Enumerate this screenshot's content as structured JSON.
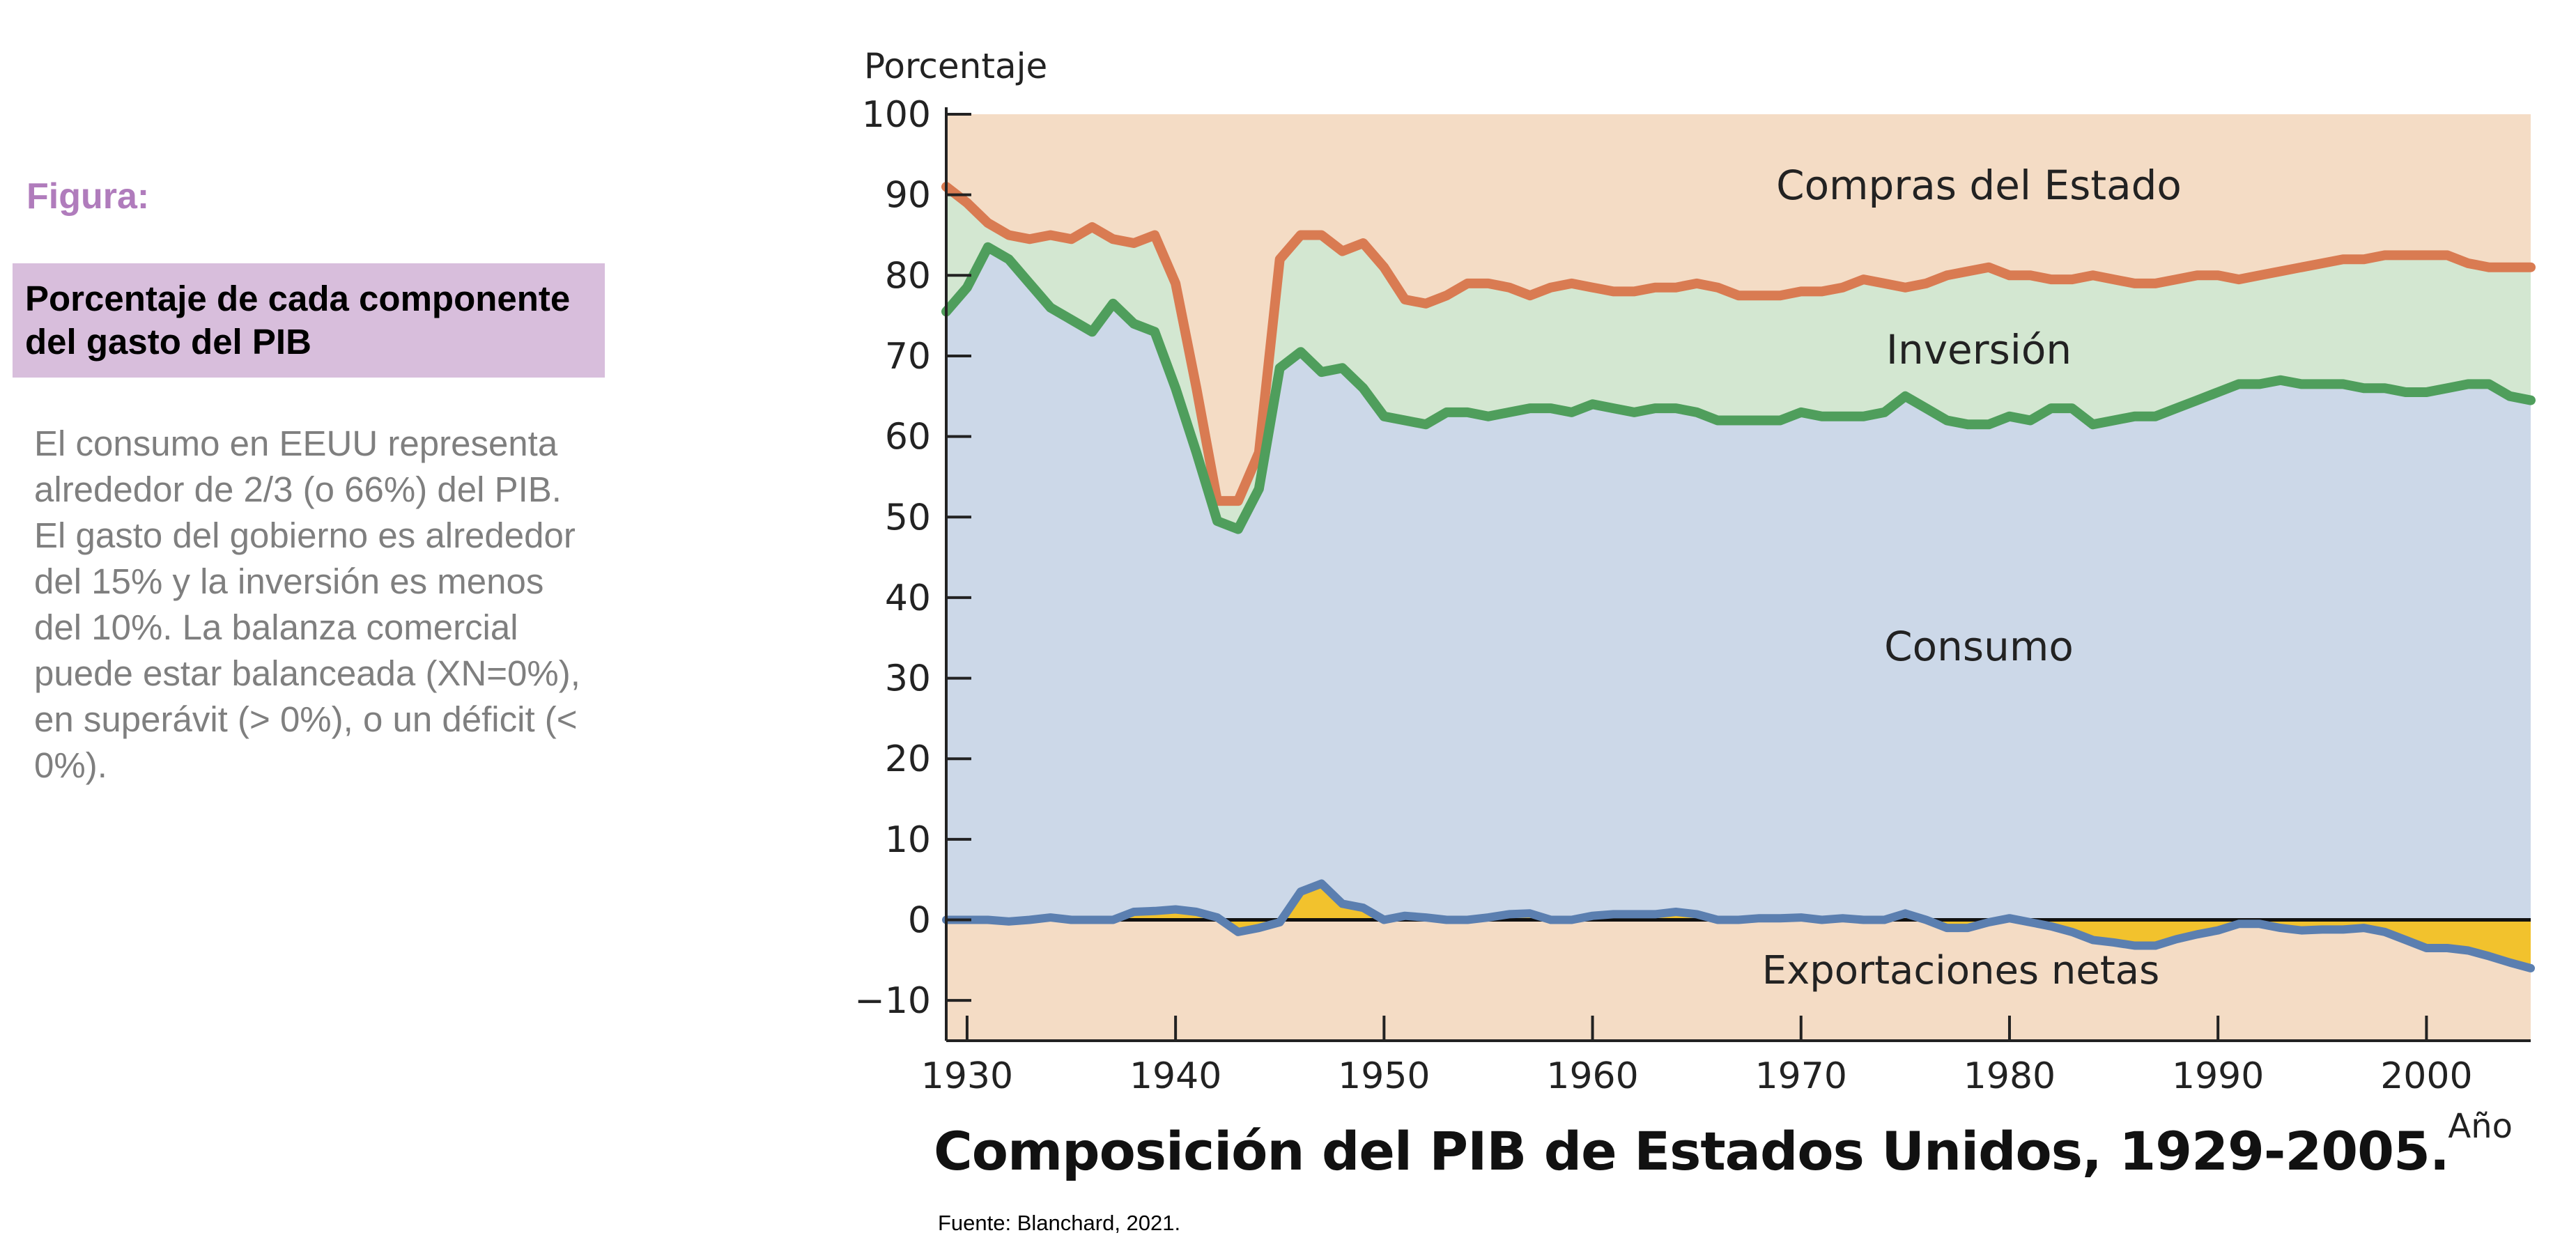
{
  "figure_label": "Figura:",
  "title_box": "Porcentaje de cada componente del gasto del PIB",
  "description": "El consumo en EEUU representa alrededor de 2/3 (o 66%) del PIB. El gasto del gobierno es alrededor del 15% y la inversión es menos del 10%. La balanza comercial puede estar balanceada (XN=0%), en superávit (> 0%), o un déficit (< 0%).",
  "source": "Fuente:  Blanchard, 2021.",
  "colors": {
    "government": "#f4dcc5",
    "investment": "#d3e7d1",
    "consumption": "#ccd8e8",
    "net_exports_fill": "#f2c22d",
    "line_government": "#d97b52",
    "line_consumption": "#4f9e5c",
    "line_net_exports": "#5b7fb0"
  },
  "chart_data": {
    "type": "area",
    "title": "Composición del PIB de Estados Unidos, 1929-2005.",
    "xlabel": "Año",
    "ylabel": "Porcentaje",
    "xlim": [
      1929,
      2005
    ],
    "ylim": [
      -15,
      100
    ],
    "x_ticks": [
      1930,
      1940,
      1950,
      1960,
      1970,
      1980,
      1990,
      2000
    ],
    "y_ticks": [
      -10,
      0,
      10,
      20,
      30,
      40,
      50,
      60,
      70,
      80,
      90,
      100
    ],
    "area_labels": [
      "Compras del Estado",
      "Inversión",
      "Consumo",
      "Exportaciones netas"
    ],
    "x": [
      1929,
      1930,
      1931,
      1932,
      1933,
      1934,
      1935,
      1936,
      1937,
      1938,
      1939,
      1940,
      1941,
      1942,
      1943,
      1944,
      1945,
      1946,
      1947,
      1948,
      1949,
      1950,
      1951,
      1952,
      1953,
      1954,
      1955,
      1956,
      1957,
      1958,
      1959,
      1960,
      1961,
      1962,
      1963,
      1964,
      1965,
      1966,
      1967,
      1968,
      1969,
      1970,
      1971,
      1972,
      1973,
      1974,
      1975,
      1976,
      1977,
      1978,
      1979,
      1980,
      1981,
      1982,
      1983,
      1984,
      1985,
      1986,
      1987,
      1988,
      1989,
      1990,
      1991,
      1992,
      1993,
      1994,
      1995,
      1996,
      1997,
      1998,
      1999,
      2000,
      2001,
      2002,
      2003,
      2004,
      2005
    ],
    "series": [
      {
        "values": [
          91,
          89,
          86.5,
          85,
          84.5,
          85,
          84.5,
          86,
          84.5,
          84,
          85,
          79,
          66,
          52,
          52,
          58,
          82,
          85,
          85,
          83,
          84,
          81,
          77,
          76.5,
          77.5,
          79,
          79,
          78.5,
          77.5,
          78.5,
          79,
          78.5,
          78,
          78,
          78.5,
          78.5,
          79,
          78.5,
          77.5,
          77.5,
          77.5,
          78,
          78,
          78.5,
          79.5,
          79,
          78.5,
          79,
          80,
          80.5,
          81,
          80,
          80,
          79.5,
          79.5,
          80,
          79.5,
          79,
          79,
          79.5,
          80,
          80,
          79.5,
          80,
          80.5,
          81,
          81.5,
          82,
          82,
          82.5,
          82.5,
          82.5,
          82.5,
          81.5,
          81,
          81,
          81
        ]
      },
      {
        "values": [
          75.5,
          78.5,
          83.5,
          82,
          79,
          76,
          74.5,
          73,
          76.5,
          74,
          73,
          66,
          58,
          49.5,
          48.5,
          53.5,
          68.5,
          70.5,
          68,
          68.5,
          66,
          62.5,
          62,
          61.5,
          63,
          63,
          62.5,
          63,
          63.5,
          63.5,
          63,
          64,
          63.5,
          63,
          63.5,
          63.5,
          63,
          62,
          62,
          62,
          62,
          63,
          62.5,
          62.5,
          62.5,
          63,
          65,
          63.5,
          62,
          61.5,
          61.5,
          62.5,
          62,
          63.5,
          63.5,
          61.5,
          62,
          62.5,
          62.5,
          63.5,
          64.5,
          65.5,
          66.5,
          66.5,
          67,
          66.5,
          66.5,
          66.5,
          66,
          66,
          65.5,
          65.5,
          66,
          66.5,
          66.5,
          65,
          64.5
        ]
      },
      {
        "values": [
          0,
          0,
          0,
          -0.2,
          0,
          0.3,
          0,
          0,
          0,
          1,
          1.1,
          1.3,
          1,
          0.3,
          -1.5,
          -1,
          -0.3,
          3.5,
          4.5,
          2,
          1.5,
          0,
          0.5,
          0.3,
          0,
          0,
          0.3,
          0.7,
          0.8,
          0,
          0,
          0.5,
          0.7,
          0.7,
          0.7,
          1,
          0.7,
          0,
          0,
          0.2,
          0.2,
          0.3,
          0,
          0.2,
          0,
          0,
          0.8,
          0,
          -1,
          -1,
          -0.3,
          0.2,
          -0.3,
          -0.8,
          -1.5,
          -2.5,
          -2.8,
          -3.2,
          -3.2,
          -2.4,
          -1.8,
          -1.3,
          -0.5,
          -0.5,
          -1,
          -1.3,
          -1.2,
          -1.2,
          -1,
          -1.5,
          -2.5,
          -3.5,
          -3.5,
          -3.8,
          -4.5,
          -5.3,
          -6
        ]
      }
    ]
  }
}
